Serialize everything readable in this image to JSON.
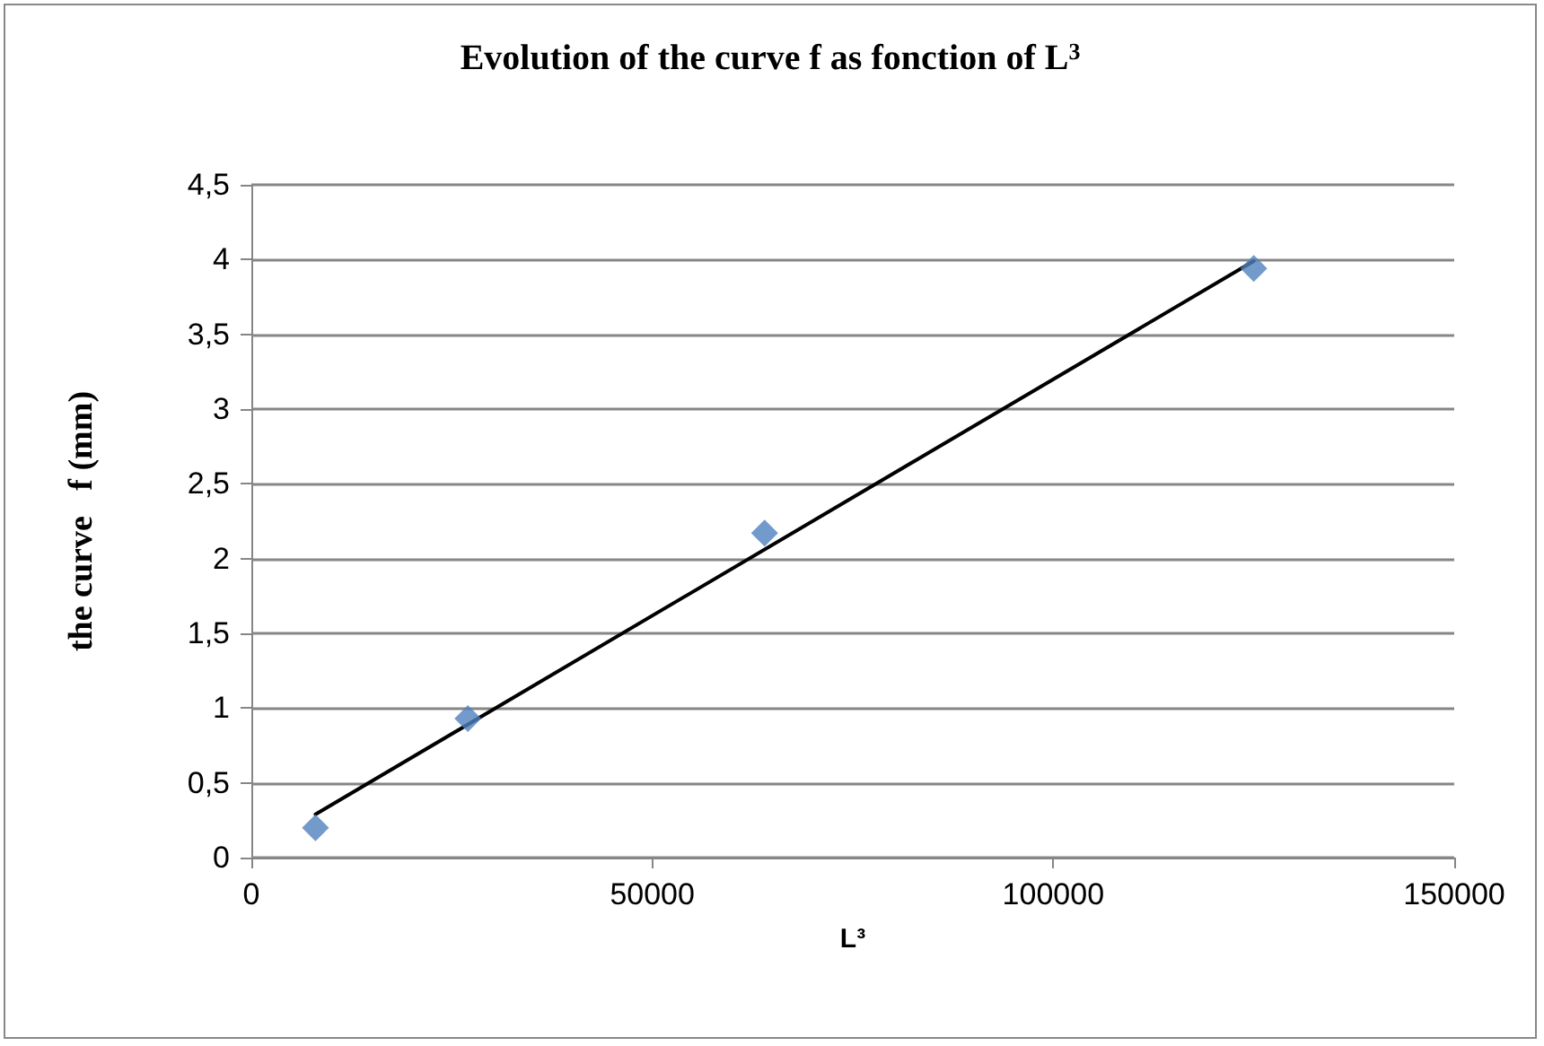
{
  "chart_data": {
    "type": "scatter",
    "title": "Evolution of the curve f as fonction of L$^{3}$",
    "xlabel": "L³",
    "ylabel": "the curve   f (mm)",
    "x": [
      8000,
      27000,
      64000,
      125000
    ],
    "series": [
      {
        "color": "#4f81bd",
        "values": [
          0.2,
          0.93,
          2.17,
          3.94
        ],
        "marker": "diamond"
      },
      {
        "type": "line",
        "color": "#000000",
        "x": [
          8000,
          125000
        ],
        "values": [
          0.29,
          3.99
        ],
        "marker": "none",
        "line_style": "solid"
      }
    ],
    "xlim": [
      0,
      150000
    ],
    "xticks": [
      0,
      50000,
      100000,
      150000
    ],
    "ylim": [
      0,
      4.5
    ],
    "yticks": [
      0,
      {
        "value": 0.5,
        "label": "0,5"
      },
      1,
      {
        "value": 1.5,
        "label": "1,5"
      },
      2,
      {
        "value": 2.5,
        "label": "2,5"
      },
      3,
      {
        "value": 3.5,
        "label": "3,5"
      },
      4,
      {
        "value": 4.5,
        "label": "4,5"
      }
    ],
    "grid": "y"
  }
}
